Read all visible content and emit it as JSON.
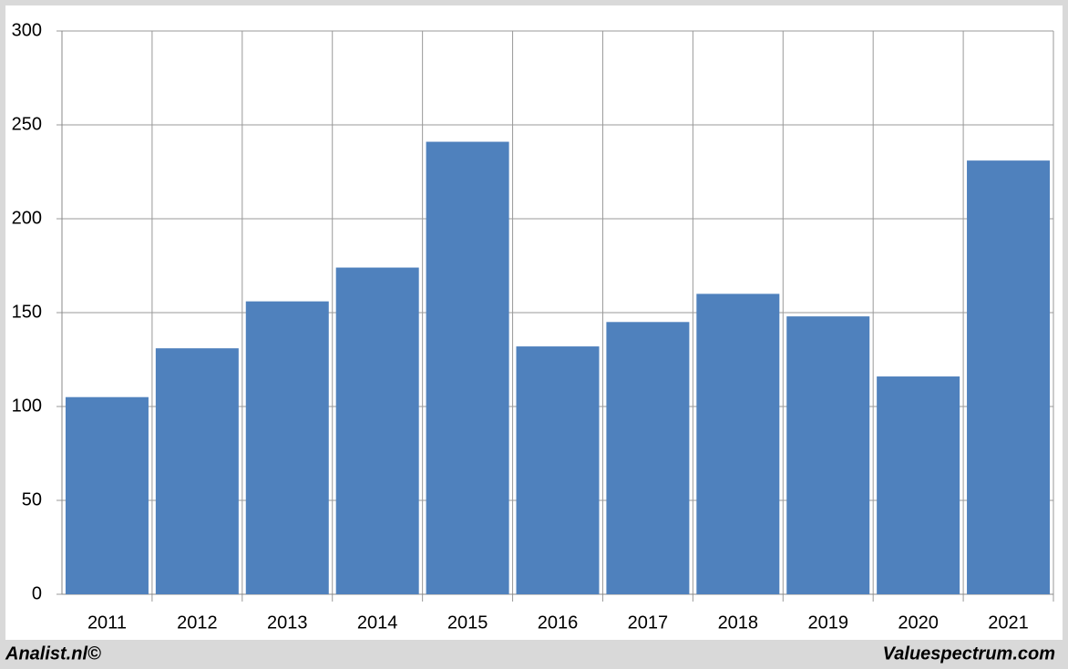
{
  "chart_data": {
    "type": "bar",
    "categories": [
      "2011",
      "2012",
      "2013",
      "2014",
      "2015",
      "2016",
      "2017",
      "2018",
      "2019",
      "2020",
      "2021"
    ],
    "values": [
      105,
      131,
      156,
      174,
      241,
      132,
      145,
      160,
      148,
      116,
      231
    ],
    "color": "#4f81bd",
    "ylim": [
      0,
      300
    ],
    "yticks": [
      0,
      50,
      100,
      150,
      200,
      250,
      300
    ],
    "grid": true
  },
  "footer": {
    "left": "Analist.nl©",
    "right": "Valuespectrum.com"
  }
}
